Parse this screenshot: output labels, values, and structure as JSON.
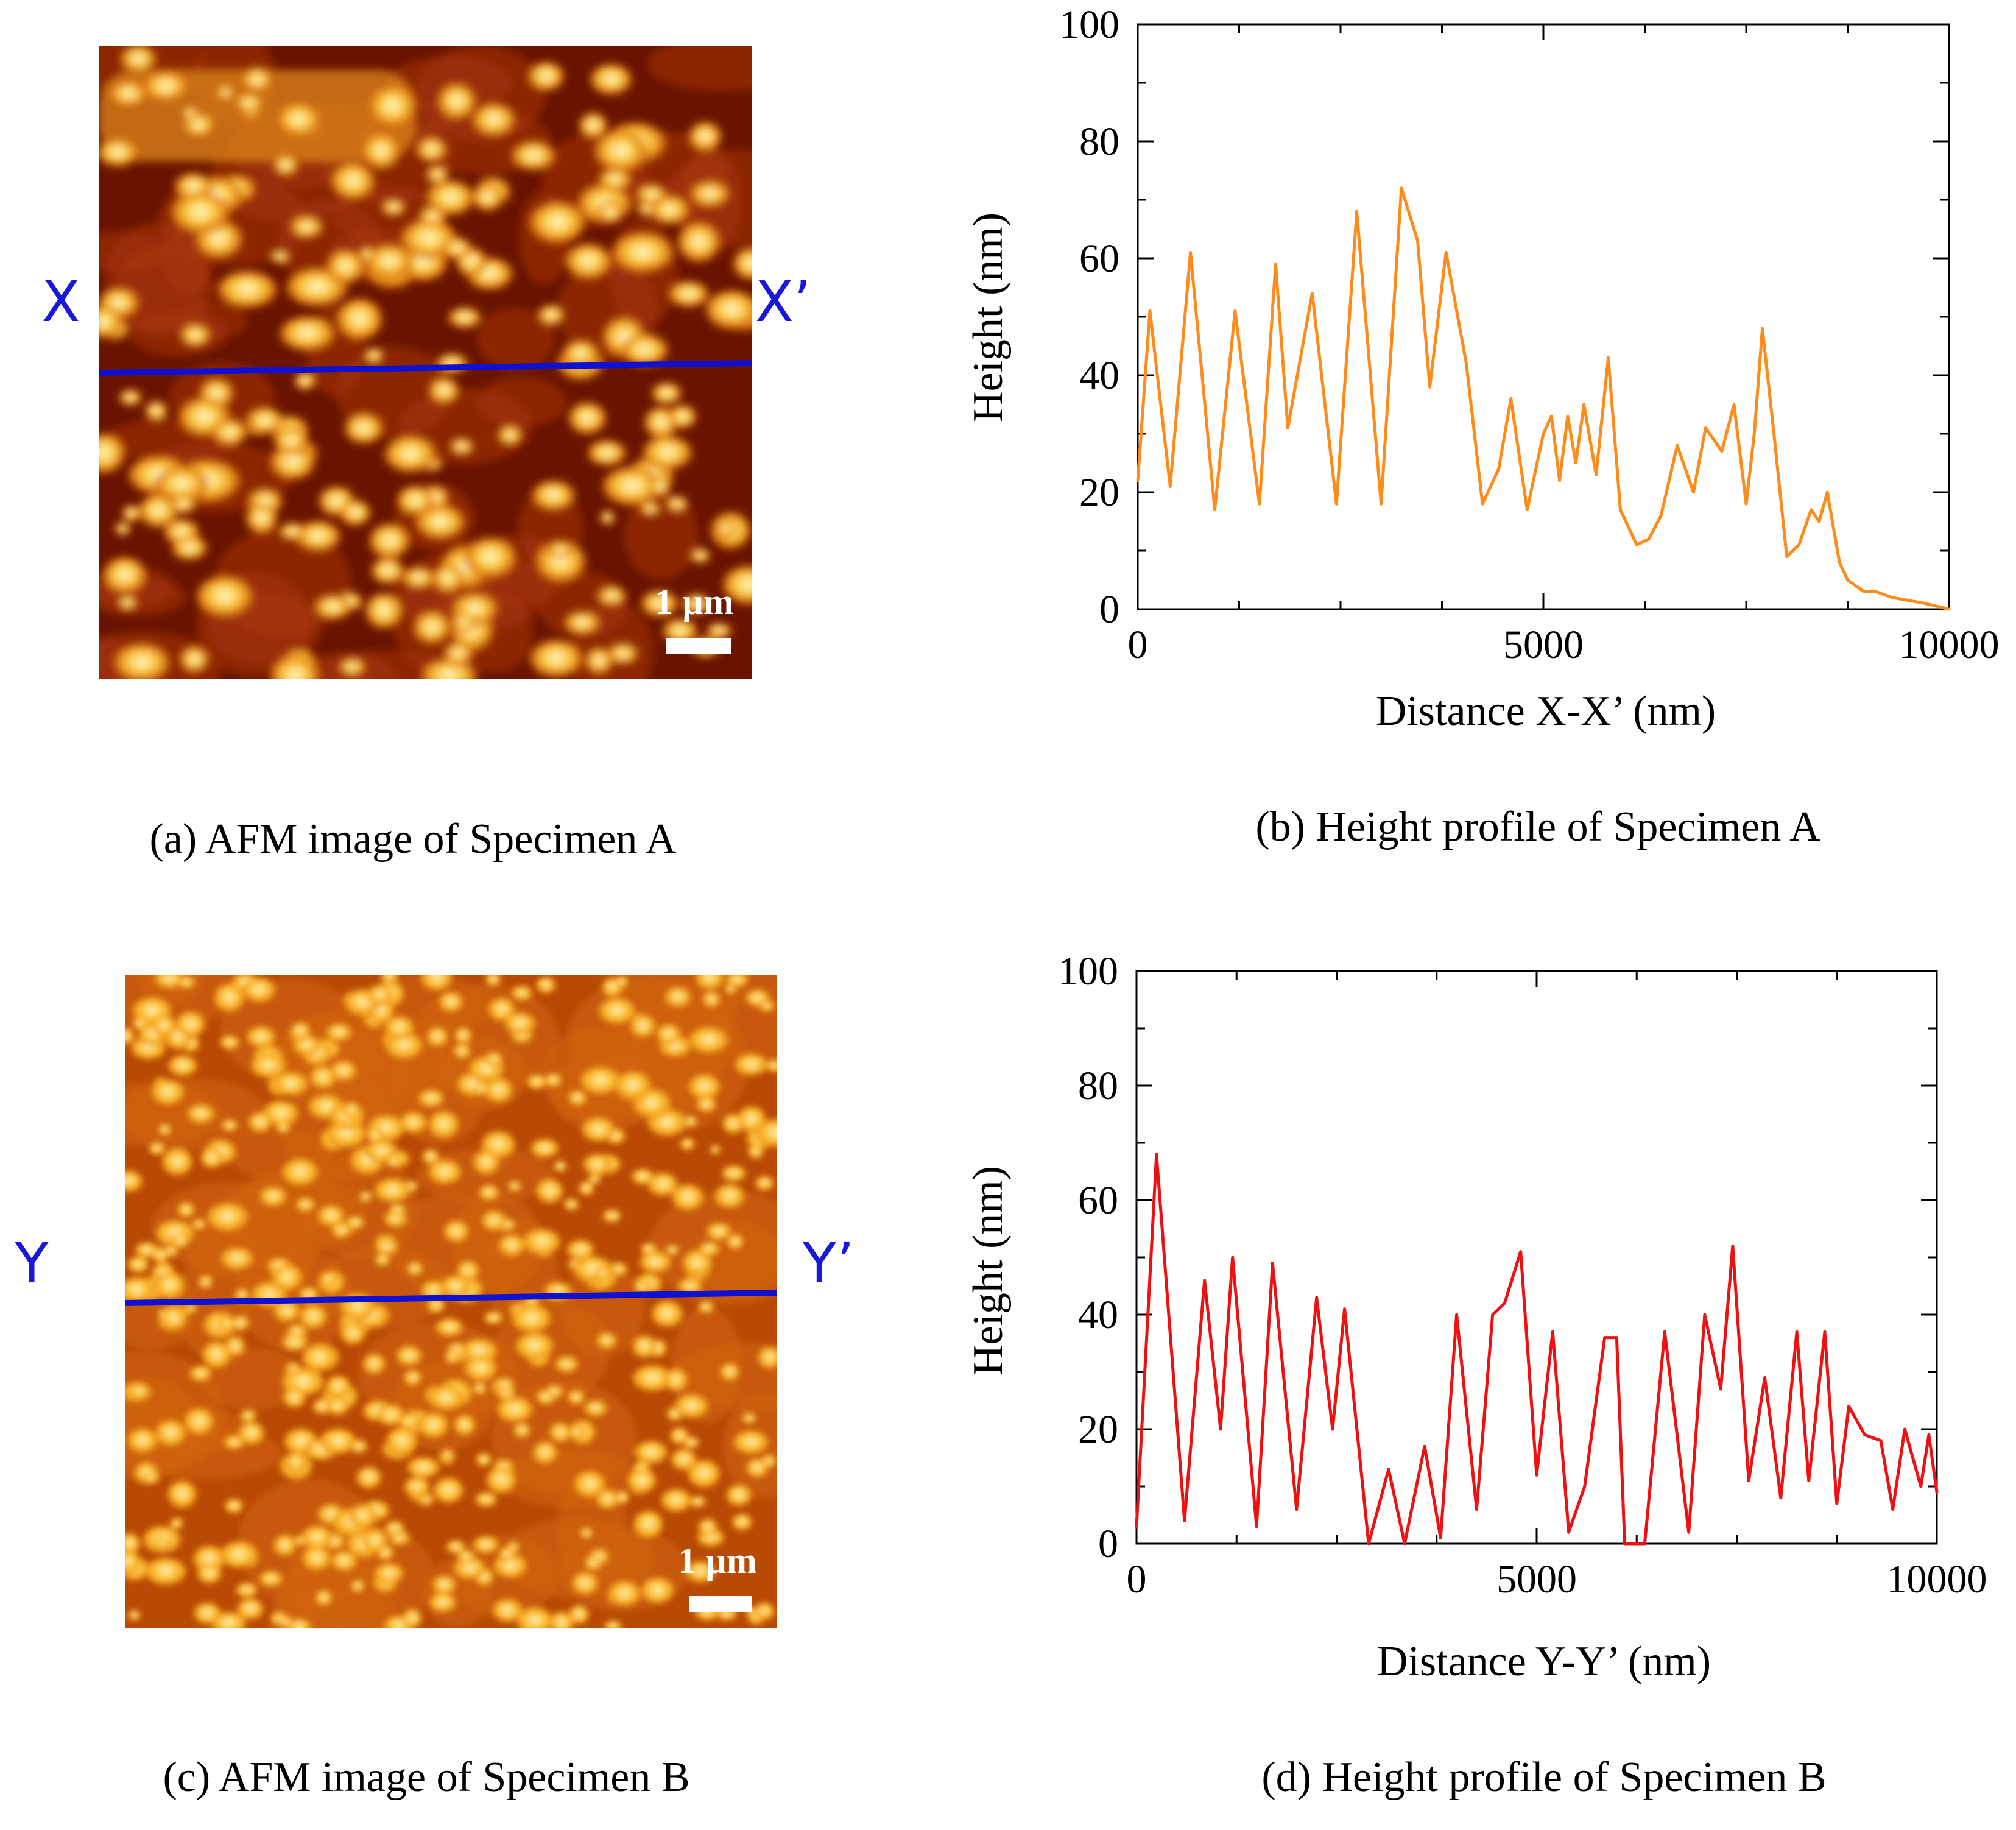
{
  "figure": {
    "colors": {
      "marker_line": "#1010d0",
      "marker_label": "#1818d8",
      "profile_a": "#ff8c1a",
      "profile_b": "#ee1111",
      "axis": "#000000",
      "scalebar": "#ffffff"
    },
    "panels": {
      "a": {
        "caption": "(a) AFM image of Specimen A",
        "marker_left": "X",
        "marker_right": "X’",
        "scalebar_label": "1 µm",
        "colormap": "afm-hot-sparse-islands"
      },
      "b": {
        "caption": "(b) Height profile of Specimen A"
      },
      "c": {
        "caption": "(c) AFM image of Specimen B",
        "marker_left": "Y",
        "marker_right": "Y’",
        "scalebar_label": "1 µm",
        "colormap": "afm-hot-dense-grains"
      },
      "d": {
        "caption": "(d) Height profile of Specimen B"
      }
    }
  },
  "chart_data": [
    {
      "id": "b",
      "type": "line",
      "title": "",
      "xlabel": "Distance X-X’ (nm)",
      "ylabel": "Height (nm)",
      "xlim": [
        0,
        10000
      ],
      "ylim": [
        0,
        100
      ],
      "xticks": [
        "0",
        "5000",
        "10000"
      ],
      "yticks": [
        "0",
        "20",
        "40",
        "60",
        "80",
        "100"
      ],
      "grid": false,
      "series": [
        {
          "name": "Specimen A",
          "x": [
            0,
            150,
            400,
            650,
            950,
            1200,
            1500,
            1700,
            1850,
            2150,
            2450,
            2700,
            3000,
            3250,
            3450,
            3600,
            3800,
            4050,
            4250,
            4450,
            4600,
            4800,
            5000,
            5100,
            5200,
            5300,
            5400,
            5500,
            5650,
            5800,
            5950,
            6150,
            6300,
            6450,
            6650,
            6850,
            7000,
            7200,
            7350,
            7500,
            7600,
            7700,
            7850,
            8000,
            8150,
            8300,
            8400,
            8500,
            8650,
            8750,
            8850,
            8950,
            9100,
            9300,
            9700,
            10000
          ],
          "y": [
            22,
            51,
            21,
            61,
            17,
            51,
            18,
            59,
            31,
            54,
            18,
            68,
            18,
            72,
            63,
            38,
            61,
            42,
            18,
            24,
            36,
            17,
            30,
            33,
            22,
            33,
            25,
            35,
            23,
            43,
            17,
            11,
            12,
            16,
            28,
            20,
            31,
            27,
            35,
            18,
            30,
            48,
            29,
            9,
            11,
            17,
            15,
            20,
            8,
            5,
            4,
            3,
            3,
            2,
            1,
            0
          ]
        }
      ]
    },
    {
      "id": "d",
      "type": "line",
      "title": "",
      "xlabel": "Distance Y-Y’ (nm)",
      "ylabel": "Height (nm)",
      "xlim": [
        0,
        10000
      ],
      "ylim": [
        0,
        100
      ],
      "xticks": [
        "0",
        "5000",
        "10000"
      ],
      "yticks": [
        "0",
        "20",
        "40",
        "60",
        "80",
        "100"
      ],
      "grid": false,
      "series": [
        {
          "name": "Specimen B",
          "x": [
            0,
            250,
            600,
            850,
            1050,
            1200,
            1500,
            1700,
            2000,
            2250,
            2450,
            2600,
            2900,
            3150,
            3350,
            3600,
            3800,
            4000,
            4250,
            4450,
            4600,
            4800,
            5000,
            5200,
            5400,
            5600,
            5850,
            6000,
            6100,
            6350,
            6600,
            6900,
            7100,
            7300,
            7450,
            7650,
            7850,
            8050,
            8250,
            8400,
            8600,
            8750,
            8900,
            9100,
            9300,
            9450,
            9600,
            9800,
            9900,
            10000
          ],
          "y": [
            3,
            68,
            4,
            46,
            20,
            50,
            3,
            49,
            6,
            43,
            20,
            41,
            0,
            13,
            0,
            17,
            1,
            40,
            6,
            40,
            42,
            51,
            12,
            37,
            2,
            10,
            36,
            36,
            0,
            0,
            37,
            2,
            40,
            27,
            52,
            11,
            29,
            8,
            37,
            11,
            37,
            7,
            24,
            19,
            18,
            6,
            20,
            10,
            19,
            9
          ]
        }
      ]
    }
  ]
}
